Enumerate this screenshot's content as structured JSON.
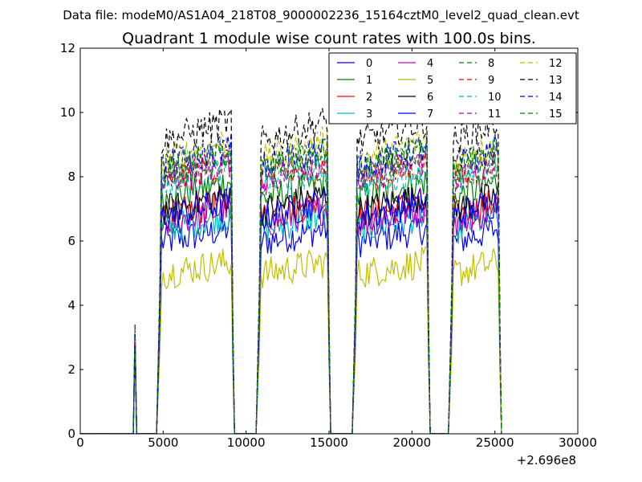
{
  "figure": {
    "suptitle": "Data file: modeM0/AS1A04_218T08_9000002236_15164cztM0_level2_quad_clean.evt"
  },
  "chart_data": {
    "type": "line",
    "title": "Quadrant 1 module wise count rates with 100.0s bins.",
    "xlabel": "",
    "ylabel": "",
    "xlim": [
      0,
      30000
    ],
    "ylim": [
      0,
      12
    ],
    "x_offset_label": "+2.696e8",
    "x_ticks": [
      0,
      5000,
      10000,
      15000,
      20000,
      25000,
      30000
    ],
    "y_ticks": [
      0,
      2,
      4,
      6,
      8,
      10,
      12
    ],
    "grid": false,
    "legend": {
      "placement": "top-right",
      "columns": 4
    },
    "active_intervals": [
      [
        4800,
        9200
      ],
      [
        10800,
        15000
      ],
      [
        16600,
        21000
      ],
      [
        22400,
        25300
      ]
    ],
    "first_burst": {
      "x": 3300,
      "value": 3.4
    },
    "series": [
      {
        "name": "0",
        "color": "#0000ff",
        "dash": "solid",
        "level": 6.1
      },
      {
        "name": "1",
        "color": "#008000",
        "dash": "solid",
        "level": 7.5
      },
      {
        "name": "2",
        "color": "#ff0000",
        "dash": "solid",
        "level": 6.9
      },
      {
        "name": "3",
        "color": "#00bfbf",
        "dash": "solid",
        "level": 6.5
      },
      {
        "name": "4",
        "color": "#bf00bf",
        "dash": "solid",
        "level": 6.7
      },
      {
        "name": "5",
        "color": "#bfbf00",
        "dash": "solid",
        "level": 5.1
      },
      {
        "name": "6",
        "color": "#000000",
        "dash": "solid",
        "level": 7.1
      },
      {
        "name": "7",
        "color": "#0000ff",
        "dash": "solid",
        "level": 6.9
      },
      {
        "name": "8",
        "color": "#008000",
        "dash": "dashed",
        "level": 8.3
      },
      {
        "name": "9",
        "color": "#ff0000",
        "dash": "dashed",
        "level": 8.0
      },
      {
        "name": "10",
        "color": "#00bfbf",
        "dash": "dashed",
        "level": 7.9
      },
      {
        "name": "11",
        "color": "#bf00bf",
        "dash": "dashed",
        "level": 8.1
      },
      {
        "name": "12",
        "color": "#bfbf00",
        "dash": "dashed",
        "level": 8.7
      },
      {
        "name": "13",
        "color": "#000000",
        "dash": "dashed",
        "level": 9.3
      },
      {
        "name": "14",
        "color": "#0000ff",
        "dash": "dashed",
        "level": 8.5
      },
      {
        "name": "15",
        "color": "#008000",
        "dash": "dashed",
        "level": 8.4
      }
    ]
  }
}
